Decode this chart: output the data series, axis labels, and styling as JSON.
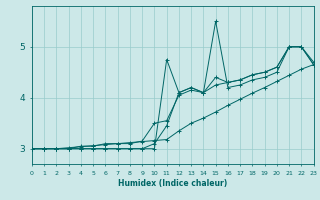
{
  "xlabel": "Humidex (Indice chaleur)",
  "bg_color": "#cce8e8",
  "grid_color": "#99cccc",
  "line_color": "#006666",
  "xmin": 0,
  "xmax": 23,
  "ymin": 2.7,
  "ymax": 5.8,
  "yticks": [
    3,
    4,
    5
  ],
  "xticks": [
    0,
    1,
    2,
    3,
    4,
    5,
    6,
    7,
    8,
    9,
    10,
    11,
    12,
    13,
    14,
    15,
    16,
    17,
    18,
    19,
    20,
    21,
    22,
    23
  ],
  "series": [
    {
      "x": [
        0,
        1,
        2,
        3,
        4,
        5,
        6,
        7,
        8,
        9,
        10,
        11,
        12,
        13,
        14,
        15,
        16,
        17,
        18,
        19,
        20,
        21,
        22,
        23
      ],
      "y": [
        3.0,
        3.0,
        3.0,
        3.0,
        3.0,
        3.0,
        3.0,
        3.0,
        3.0,
        3.0,
        3.0,
        4.75,
        4.1,
        4.2,
        4.1,
        5.5,
        4.2,
        4.25,
        4.35,
        4.4,
        4.5,
        5.0,
        5.0,
        4.65
      ]
    },
    {
      "x": [
        0,
        1,
        2,
        3,
        4,
        5,
        6,
        7,
        8,
        9,
        10,
        11,
        12,
        13,
        14,
        15,
        16,
        17,
        18,
        19,
        20,
        21,
        22,
        23
      ],
      "y": [
        3.0,
        3.0,
        3.0,
        3.0,
        3.0,
        3.0,
        3.0,
        3.0,
        3.0,
        3.0,
        3.1,
        3.45,
        4.1,
        4.2,
        4.1,
        4.25,
        4.3,
        4.35,
        4.45,
        4.5,
        4.6,
        5.0,
        5.0,
        4.65
      ]
    },
    {
      "x": [
        0,
        1,
        2,
        3,
        4,
        5,
        6,
        7,
        8,
        9,
        10,
        11,
        12,
        13,
        14,
        15,
        16,
        17,
        18,
        19,
        20,
        21,
        22,
        23
      ],
      "y": [
        3.0,
        3.0,
        3.0,
        3.0,
        3.05,
        3.05,
        3.1,
        3.1,
        3.1,
        3.15,
        3.5,
        3.55,
        4.05,
        4.15,
        4.1,
        4.4,
        4.3,
        4.35,
        4.45,
        4.5,
        4.6,
        5.0,
        5.0,
        4.7
      ]
    },
    {
      "x": [
        0,
        1,
        2,
        3,
        4,
        5,
        6,
        7,
        8,
        9,
        10,
        11,
        12,
        13,
        14,
        15,
        16,
        17,
        18,
        19,
        20,
        21,
        22,
        23
      ],
      "y": [
        3.0,
        3.0,
        3.0,
        3.02,
        3.04,
        3.06,
        3.08,
        3.1,
        3.12,
        3.14,
        3.16,
        3.18,
        3.35,
        3.5,
        3.6,
        3.72,
        3.85,
        3.97,
        4.09,
        4.2,
        4.32,
        4.44,
        4.56,
        4.65
      ]
    }
  ]
}
